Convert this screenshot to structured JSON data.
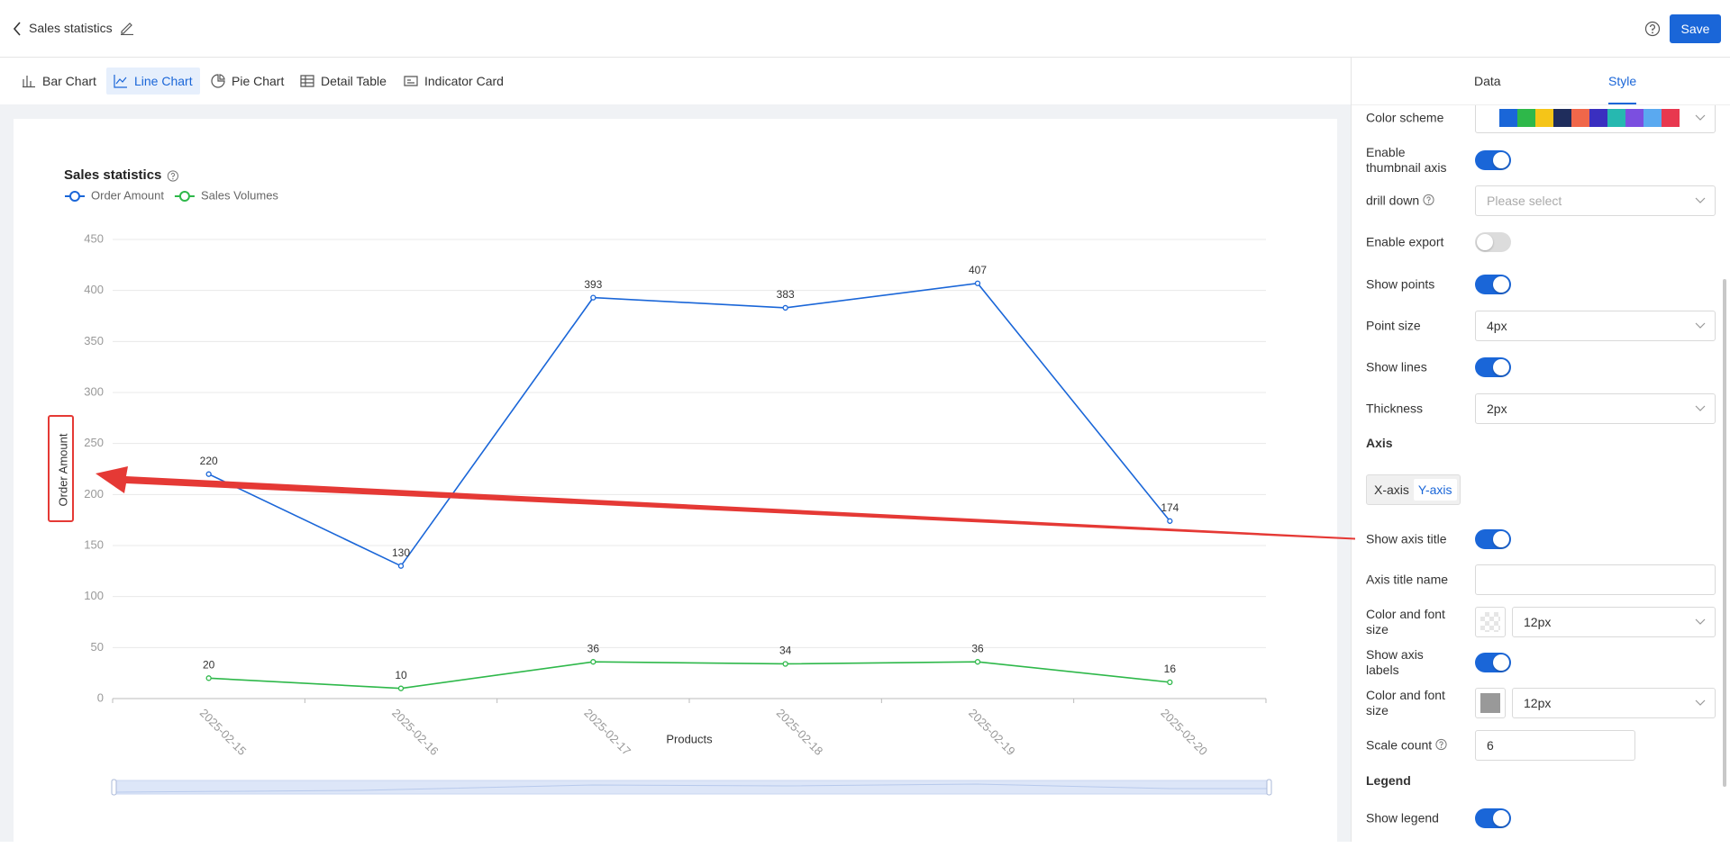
{
  "header": {
    "title": "Sales statistics",
    "save": "Save"
  },
  "chart_types": [
    "Bar Chart",
    "Line Chart",
    "Pie Chart",
    "Detail Table",
    "Indicator Card"
  ],
  "active_chart_type": 1,
  "panel_tabs": [
    "Data",
    "Style"
  ],
  "active_panel_tab": 1,
  "chart_data": {
    "type": "line",
    "title": "Sales statistics",
    "x": [
      "2025-02-15",
      "2025-02-16",
      "2025-02-17",
      "2025-02-18",
      "2025-02-19",
      "2025-02-20"
    ],
    "series": [
      {
        "name": "Order Amount",
        "color": "#1a66d8",
        "values": [
          220,
          130,
          393,
          383,
          407,
          174
        ]
      },
      {
        "name": "Sales Volumes",
        "color": "#2eb84a",
        "values": [
          20,
          10,
          36,
          34,
          36,
          16
        ]
      }
    ],
    "xlabel": "Products",
    "ylabel": "Order Amount",
    "ylim": [
      0,
      450
    ],
    "yticks": [
      0,
      50,
      100,
      150,
      200,
      250,
      300,
      350,
      400,
      450
    ],
    "grid": true,
    "show_points": true
  },
  "settings": [
    {
      "label": "Color scheme",
      "kind": "colors",
      "colors": [
        "#1a66d8",
        "#2eb84a",
        "#f5c518",
        "#1f2d5c",
        "#f0674a",
        "#3a2fc0",
        "#26b8b0",
        "#7b4fe0",
        "#5aa9f0",
        "#e8384f"
      ]
    },
    {
      "label": "Enable thumbnail axis",
      "kind": "toggle",
      "on": true
    },
    {
      "label": "drill down",
      "kind": "select",
      "help": true,
      "placeholder": "Please select"
    },
    {
      "label": "Enable export",
      "kind": "toggle",
      "on": false
    },
    {
      "label": "Show points",
      "kind": "toggle",
      "on": true
    },
    {
      "label": "Point size",
      "kind": "select",
      "value": "4px"
    },
    {
      "label": "Show lines",
      "kind": "toggle",
      "on": true
    },
    {
      "label": "Thickness",
      "kind": "select",
      "value": "2px"
    },
    {
      "label": "Axis",
      "kind": "section"
    },
    {
      "kind": "segmented",
      "options": [
        "X-axis",
        "Y-axis"
      ],
      "active": 1
    },
    {
      "label": "Show axis title",
      "kind": "toggle",
      "on": true
    },
    {
      "label": "Axis title name",
      "kind": "input"
    },
    {
      "label": "Color and font size",
      "kind": "color-select",
      "swatch": "transparent",
      "value": "12px"
    },
    {
      "label": "Show axis labels",
      "kind": "toggle",
      "on": true
    },
    {
      "label": "Color and font size",
      "kind": "color-select",
      "swatch": "#999999",
      "value": "12px"
    },
    {
      "label": "Scale count",
      "kind": "input",
      "help": true,
      "value": "6"
    },
    {
      "label": "Legend",
      "kind": "section"
    },
    {
      "label": "Show legend",
      "kind": "toggle",
      "on": true
    }
  ]
}
